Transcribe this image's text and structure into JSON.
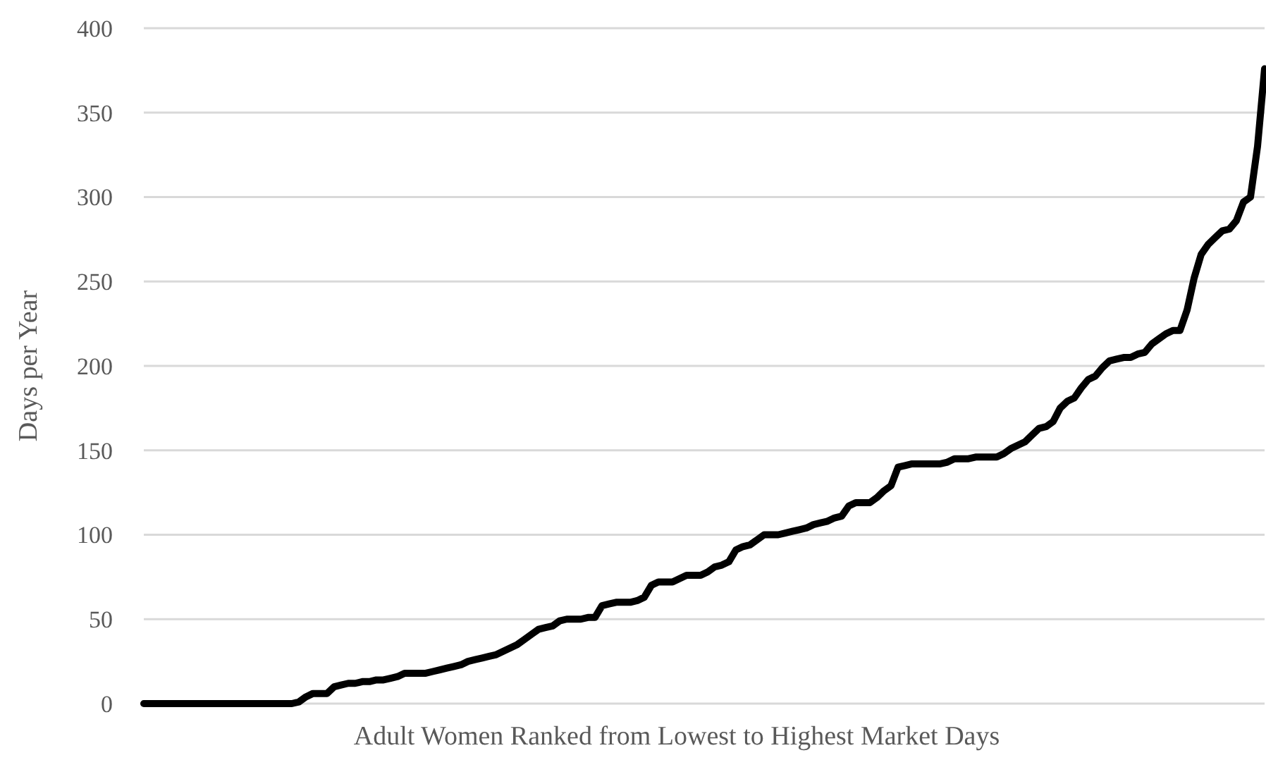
{
  "chart_data": {
    "type": "line",
    "xlabel": "Adult Women Ranked from Lowest to Highest Market Days",
    "ylabel": "Days per Year",
    "categories": [
      null,
      null,
      null,
      null,
      null,
      null,
      null,
      null,
      null,
      null,
      null,
      null,
      null,
      null,
      null,
      null,
      null,
      null,
      null,
      null,
      null,
      null,
      null,
      null,
      null,
      null,
      null,
      null,
      null,
      null,
      null,
      null,
      null,
      null,
      null,
      null,
      null,
      null,
      null,
      null,
      null,
      null,
      null,
      null,
      null,
      null,
      null,
      null,
      null,
      null,
      null,
      null,
      null,
      null,
      null,
      null,
      null,
      null,
      null,
      null,
      null,
      null,
      null,
      null,
      null,
      null,
      null,
      null,
      null,
      null,
      null,
      null,
      null,
      null,
      null,
      null,
      null,
      null,
      null,
      null,
      null,
      null,
      null,
      null,
      null,
      null,
      null,
      null,
      null,
      null,
      null,
      null,
      null,
      null,
      null,
      null,
      null,
      null,
      null,
      null,
      null,
      null,
      null,
      null,
      null,
      null,
      null,
      null,
      null,
      null,
      null,
      null,
      null,
      null,
      null,
      null,
      null,
      null,
      null,
      null,
      null,
      null,
      null,
      null,
      null,
      null,
      null,
      null,
      null,
      null,
      null,
      null,
      null,
      null,
      null,
      null,
      null,
      null,
      null,
      null,
      null,
      null,
      null,
      null,
      null,
      null,
      null,
      null,
      null,
      null,
      null,
      null,
      null,
      null,
      null,
      null,
      null,
      null,
      null,
      null
    ],
    "series": [
      {
        "color": "#000000",
        "values": [
          0,
          0,
          0,
          0,
          0,
          0,
          0,
          0,
          0,
          0,
          0,
          0,
          0,
          0,
          0,
          0,
          0,
          0,
          0,
          0,
          0,
          0,
          1,
          4,
          6,
          6,
          6,
          10,
          11,
          12,
          12,
          13,
          13,
          14,
          14,
          15,
          16,
          18,
          18,
          18,
          18,
          19,
          20,
          21,
          22,
          23,
          25,
          26,
          27,
          28,
          29,
          31,
          33,
          35,
          38,
          41,
          44,
          45,
          46,
          49,
          50,
          50,
          50,
          51,
          51,
          58,
          59,
          60,
          60,
          60,
          61,
          63,
          70,
          72,
          72,
          72,
          74,
          76,
          76,
          76,
          78,
          81,
          82,
          84,
          91,
          93,
          94,
          97,
          100,
          100,
          100,
          101,
          102,
          103,
          104,
          106,
          107,
          108,
          110,
          111,
          117,
          119,
          119,
          119,
          122,
          126,
          129,
          140,
          141,
          142,
          142,
          142,
          142,
          142,
          143,
          145,
          145,
          145,
          146,
          146,
          146,
          146,
          148,
          151,
          153,
          155,
          159,
          163,
          164,
          167,
          175,
          179,
          181,
          187,
          192,
          194,
          199,
          203,
          204,
          205,
          205,
          207,
          208,
          213,
          216,
          219,
          221,
          221,
          233,
          252,
          266,
          272,
          276,
          280,
          281,
          286,
          297,
          300,
          330,
          376
        ]
      }
    ],
    "ylim": [
      0,
      400
    ],
    "yticks": [
      0,
      50,
      100,
      150,
      200,
      250,
      300,
      350,
      400
    ],
    "grid": "y",
    "tick_labels": "y",
    "line_style": "solid",
    "marker": "none"
  }
}
